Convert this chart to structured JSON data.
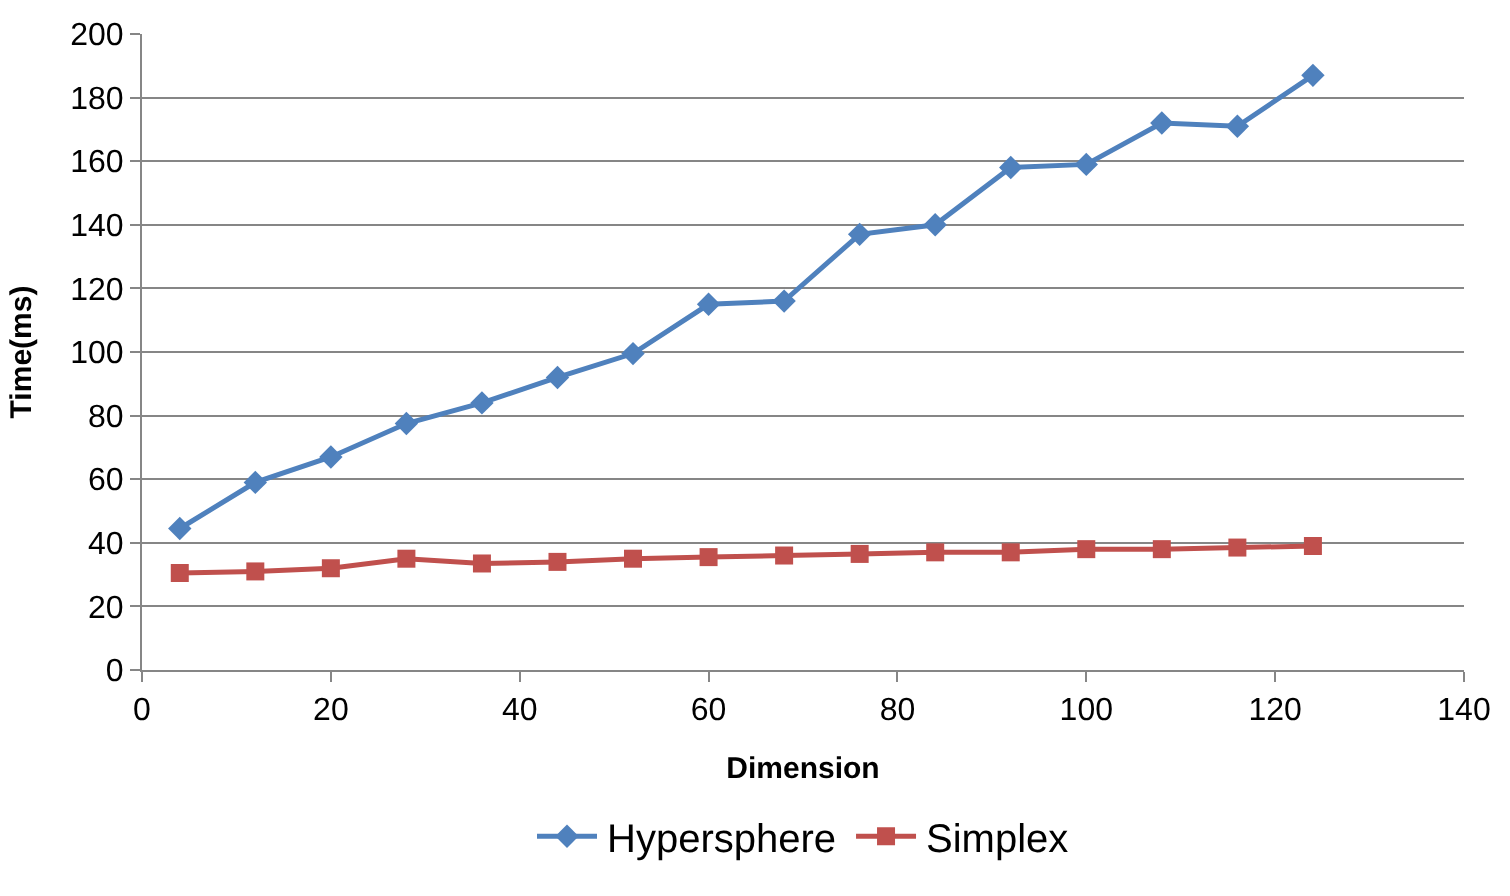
{
  "chart_data": {
    "type": "line",
    "xlabel": "Dimension",
    "ylabel": "Time(ms)",
    "x": [
      4,
      12,
      20,
      28,
      36,
      44,
      52,
      60,
      68,
      76,
      84,
      92,
      100,
      108,
      116,
      124
    ],
    "series": [
      {
        "name": "Hypersphere",
        "color": "#4f81bd",
        "marker": "diamond",
        "values": [
          44.5,
          59,
          67,
          77.5,
          84,
          92,
          99.5,
          115,
          116,
          137,
          140,
          158,
          159,
          172,
          171,
          187
        ]
      },
      {
        "name": "Simplex",
        "color": "#c0504d",
        "marker": "square",
        "values": [
          30.5,
          31,
          32,
          35,
          33.5,
          34,
          35,
          35.5,
          36,
          36.5,
          37,
          37,
          38,
          38,
          38.5,
          39
        ]
      }
    ],
    "xlim": [
      0,
      140
    ],
    "xticks": [
      0,
      20,
      40,
      60,
      80,
      100,
      120,
      140
    ],
    "ylim": [
      0,
      200
    ],
    "yticks": [
      0,
      20,
      40,
      60,
      80,
      100,
      120,
      140,
      160,
      180,
      200
    ],
    "grid": "y",
    "legend": "bottom",
    "line_style": "solid"
  }
}
